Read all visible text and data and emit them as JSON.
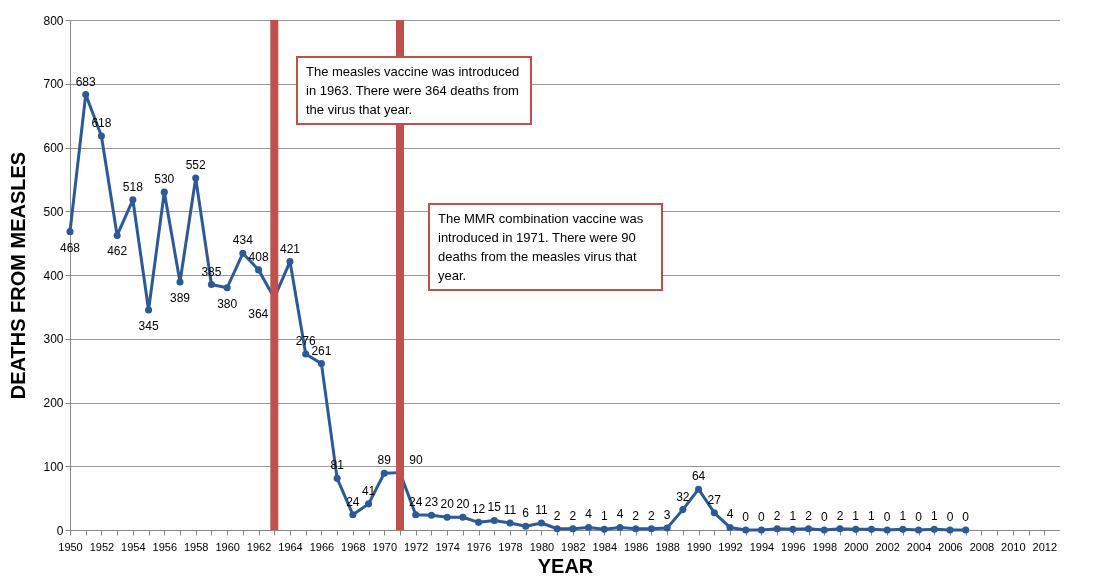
{
  "chart_data": {
    "type": "line",
    "xlabel": "YEAR",
    "ylabel": "DEATHS FROM MEASLES",
    "x": [
      1950,
      1951,
      1952,
      1953,
      1954,
      1955,
      1956,
      1957,
      1958,
      1959,
      1960,
      1961,
      1962,
      1963,
      1964,
      1965,
      1966,
      1967,
      1968,
      1969,
      1970,
      1971,
      1972,
      1973,
      1974,
      1975,
      1976,
      1977,
      1978,
      1979,
      1980,
      1981,
      1982,
      1983,
      1984,
      1985,
      1986,
      1987,
      1988,
      1989,
      1990,
      1991,
      1992,
      1993,
      1994,
      1995,
      1996,
      1997,
      1998,
      1999,
      2000,
      2001,
      2002,
      2003,
      2004,
      2005,
      2006,
      2007
    ],
    "series": [
      {
        "color": "#2c5a96",
        "values": [
          468,
          683,
          618,
          462,
          518,
          345,
          530,
          389,
          552,
          385,
          380,
          434,
          408,
          364,
          421,
          276,
          261,
          81,
          24,
          41,
          89,
          90,
          24,
          23,
          20,
          20,
          12,
          15,
          11,
          6,
          11,
          2,
          2,
          4,
          1,
          4,
          2,
          2,
          3,
          32,
          64,
          27,
          4,
          0,
          0,
          2,
          1,
          2,
          0,
          2,
          1,
          1,
          0,
          1,
          0,
          1,
          0,
          0
        ]
      }
    ],
    "xlim": [
      1950,
      2013
    ],
    "xticks": [
      1950,
      {
        "value": 1951,
        "label": null
      },
      1952,
      {
        "value": 1953,
        "label": null
      },
      1954,
      {
        "value": 1955,
        "label": null
      },
      1956,
      {
        "value": 1957,
        "label": null
      },
      1958,
      {
        "value": 1959,
        "label": null
      },
      1960,
      {
        "value": 1961,
        "label": null
      },
      1962,
      {
        "value": 1963,
        "label": null
      },
      1964,
      {
        "value": 1965,
        "label": null
      },
      1966,
      {
        "value": 1967,
        "label": null
      },
      1968,
      {
        "value": 1969,
        "label": null
      },
      1970,
      {
        "value": 1971,
        "label": null
      },
      1972,
      {
        "value": 1973,
        "label": null
      },
      1974,
      {
        "value": 1975,
        "label": null
      },
      1976,
      {
        "value": 1977,
        "label": null
      },
      1978,
      {
        "value": 1979,
        "label": null
      },
      1980,
      {
        "value": 1981,
        "label": null
      },
      1982,
      {
        "value": 1983,
        "label": null
      },
      1984,
      {
        "value": 1985,
        "label": null
      },
      1986,
      {
        "value": 1987,
        "label": null
      },
      1988,
      {
        "value": 1989,
        "label": null
      },
      1990,
      {
        "value": 1991,
        "label": null
      },
      1992,
      {
        "value": 1993,
        "label": null
      },
      1994,
      {
        "value": 1995,
        "label": null
      },
      1996,
      {
        "value": 1997,
        "label": null
      },
      1998,
      {
        "value": 1999,
        "label": null
      },
      2000,
      {
        "value": 2001,
        "label": null
      },
      2002,
      {
        "value": 2003,
        "label": null
      },
      2004,
      {
        "value": 2005,
        "label": null
      },
      2006,
      {
        "value": 2007,
        "label": null
      },
      2008,
      {
        "value": 2009,
        "label": null
      },
      2010,
      {
        "value": 2011,
        "label": null
      },
      2012
    ],
    "ylim": [
      0,
      800
    ],
    "yticks": [
      0,
      100,
      200,
      300,
      400,
      500,
      600,
      700,
      800
    ],
    "grid": "y",
    "marker": "circle",
    "data_labels": true,
    "ref_lines": [
      {
        "axis": "x",
        "value": 1963,
        "color": "#c0504d"
      },
      {
        "axis": "x",
        "value": 1971,
        "color": "#c0504d"
      }
    ],
    "annotations": [
      "The measles vaccine was introduced in 1963. There were 364 deaths from the virus that year.",
      "The MMR combination vaccine was introduced in 1971. There were 90 deaths from the measles virus that year."
    ]
  }
}
